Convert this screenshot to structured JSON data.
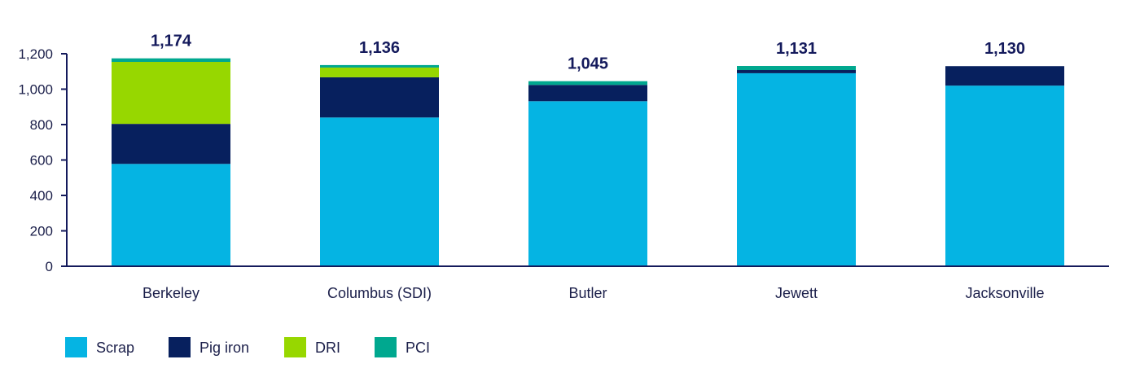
{
  "chart_data": {
    "type": "bar",
    "stacked": true,
    "categories": [
      "Berkeley",
      "Columbus (SDI)",
      "Butler",
      "Jewett",
      "Jacksonville"
    ],
    "series": [
      {
        "name": "Scrap",
        "color": "#05b4e3",
        "values": [
          578,
          840,
          932,
          1090,
          1020
        ]
      },
      {
        "name": "Pig iron",
        "color": "#07205e",
        "values": [
          226,
          227,
          92,
          18,
          110
        ]
      },
      {
        "name": "DRI",
        "color": "#97d700",
        "values": [
          350,
          55,
          0,
          0,
          0
        ]
      },
      {
        "name": "PCI",
        "color": "#00a88f",
        "values": [
          20,
          14,
          21,
          23,
          0
        ]
      }
    ],
    "totals": [
      "1,174",
      "1,136",
      "1,045",
      "1,131",
      "1,130"
    ],
    "ylim": [
      0,
      1200
    ],
    "yticks": [
      0,
      200,
      400,
      600,
      800,
      1000,
      1200
    ],
    "ytick_labels": [
      "0",
      "200",
      "400",
      "600",
      "800",
      "1,000",
      "1,200"
    ],
    "axis_color": "#141a5c",
    "grid": false,
    "legend_position": "bottom-left",
    "title": "",
    "xlabel": "",
    "ylabel": ""
  }
}
